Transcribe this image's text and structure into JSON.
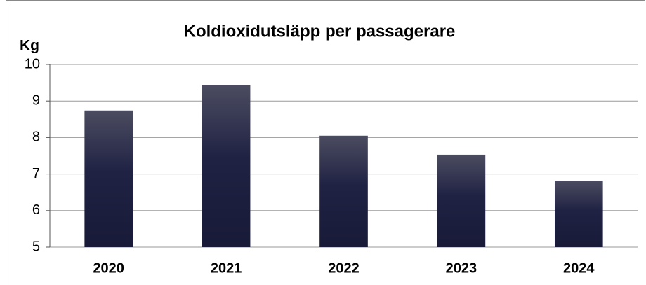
{
  "chart_data": {
    "type": "bar",
    "title": "Koldioxidutsläpp per passagerare",
    "y_label": "Kg",
    "categories": [
      "2020",
      "2021",
      "2022",
      "2023",
      "2024"
    ],
    "values": [
      8.74,
      9.44,
      8.05,
      7.53,
      6.82
    ],
    "color": "#1a1c3a",
    "ylim": [
      5,
      10
    ],
    "yticks": [
      5,
      6,
      7,
      8,
      9,
      10
    ],
    "grid": true
  }
}
